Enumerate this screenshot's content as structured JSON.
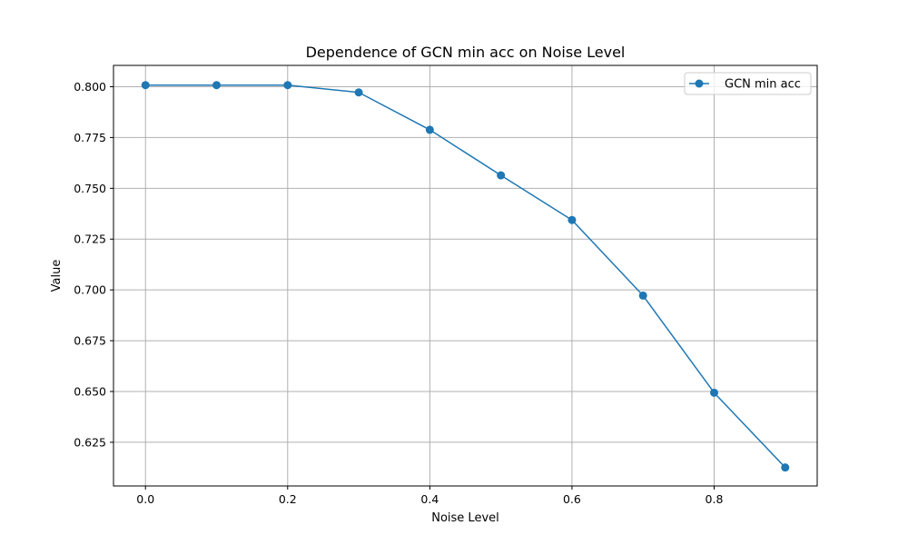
{
  "chart_data": {
    "type": "line",
    "title": "Dependence of GCN min acc on Noise Level",
    "xlabel": "Noise Level",
    "ylabel": "Value",
    "xlim": [
      -0.045,
      0.945
    ],
    "ylim": [
      0.6035,
      0.8105
    ],
    "xticks": [
      0.0,
      0.2,
      0.4,
      0.6,
      0.8
    ],
    "xtick_labels": [
      "0.0",
      "0.2",
      "0.4",
      "0.6",
      "0.8"
    ],
    "yticks": [
      0.625,
      0.65,
      0.675,
      0.7,
      0.725,
      0.75,
      0.775,
      0.8
    ],
    "ytick_labels": [
      "0.625",
      "0.650",
      "0.675",
      "0.700",
      "0.725",
      "0.750",
      "0.775",
      "0.800"
    ],
    "grid": true,
    "legend_position": "top-right",
    "x": [
      0.0,
      0.1,
      0.2,
      0.3,
      0.4,
      0.5,
      0.6,
      0.7,
      0.8,
      0.9
    ],
    "series": [
      {
        "name": "GCN min acc",
        "color": "#1f77b4",
        "marker": "circle",
        "values": [
          0.8008,
          0.8008,
          0.8008,
          0.7972,
          0.7788,
          0.7564,
          0.7344,
          0.6972,
          0.6494,
          0.6126
        ]
      }
    ]
  }
}
